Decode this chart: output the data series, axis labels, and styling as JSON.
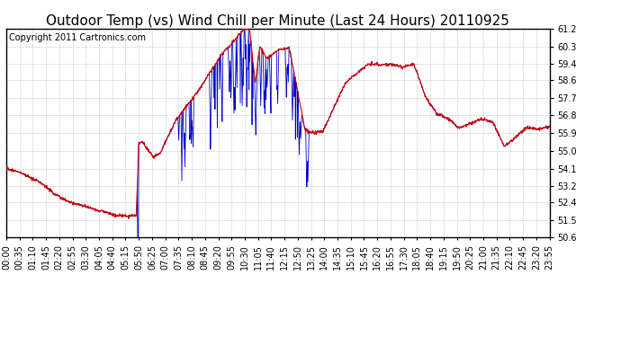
{
  "title": "Outdoor Temp (vs) Wind Chill per Minute (Last 24 Hours) 20110925",
  "copyright_text": "Copyright 2011 Cartronics.com",
  "ylim": [
    50.6,
    61.2
  ],
  "yticks": [
    50.6,
    51.5,
    52.4,
    53.2,
    54.1,
    55.0,
    55.9,
    56.8,
    57.7,
    58.6,
    59.4,
    60.3,
    61.2
  ],
  "xtick_labels": [
    "00:00",
    "00:35",
    "01:10",
    "01:45",
    "02:20",
    "02:55",
    "03:30",
    "04:05",
    "04:40",
    "05:15",
    "05:50",
    "06:25",
    "07:00",
    "07:35",
    "08:10",
    "08:45",
    "09:20",
    "09:55",
    "10:30",
    "11:05",
    "11:40",
    "12:15",
    "12:50",
    "13:25",
    "14:00",
    "14:35",
    "15:10",
    "15:45",
    "16:20",
    "16:55",
    "17:30",
    "18:05",
    "18:40",
    "19:15",
    "19:50",
    "20:25",
    "21:00",
    "21:35",
    "22:10",
    "22:45",
    "23:20",
    "23:55"
  ],
  "bg_color": "#ffffff",
  "plot_bg_color": "#ffffff",
  "grid_color": "#b0b0b0",
  "red_color": "#cc0000",
  "blue_color": "#0000cc",
  "title_fontsize": 11,
  "copyright_fontsize": 7,
  "tick_fontsize": 7,
  "n_points": 1440
}
